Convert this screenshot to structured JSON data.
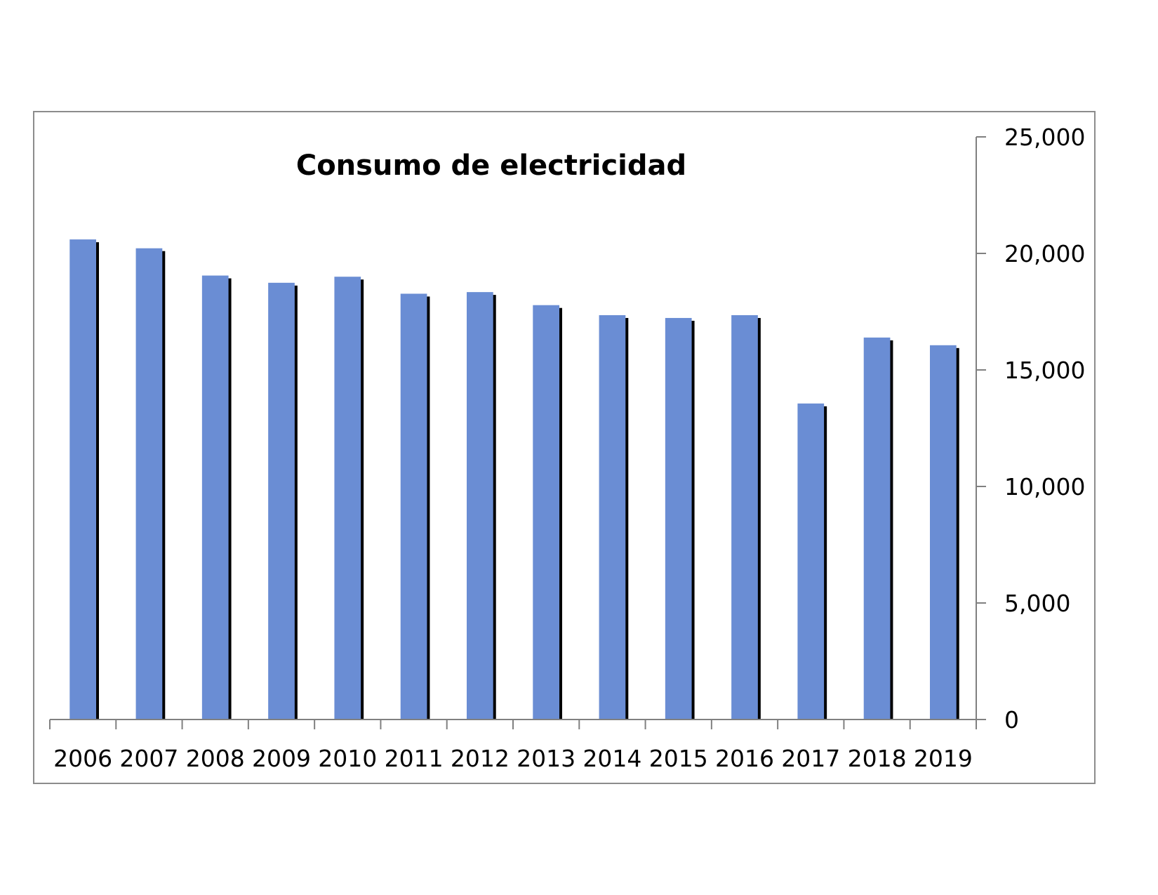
{
  "chart_data": {
    "type": "bar",
    "title": "Consumo de electricidad",
    "categories": [
      "2006",
      "2007",
      "2008",
      "2009",
      "2010",
      "2011",
      "2012",
      "2013",
      "2014",
      "2015",
      "2016",
      "2017",
      "2018",
      "2019"
    ],
    "values": [
      20600,
      20220,
      19050,
      18740,
      19000,
      18270,
      18340,
      17780,
      17350,
      17230,
      17350,
      13560,
      16390,
      16060
    ],
    "y_ticks": [
      "0",
      "5,000",
      "10,000",
      "15,000",
      "20,000",
      "25,000"
    ],
    "ylim": [
      0,
      25000
    ],
    "y_axis_position": "right",
    "grid": false,
    "legend": "none",
    "colors": {
      "bar": "#6a8dd4",
      "bar_shadow": "#000000",
      "frame": "#8c8c8c",
      "axis": "#808080"
    }
  }
}
